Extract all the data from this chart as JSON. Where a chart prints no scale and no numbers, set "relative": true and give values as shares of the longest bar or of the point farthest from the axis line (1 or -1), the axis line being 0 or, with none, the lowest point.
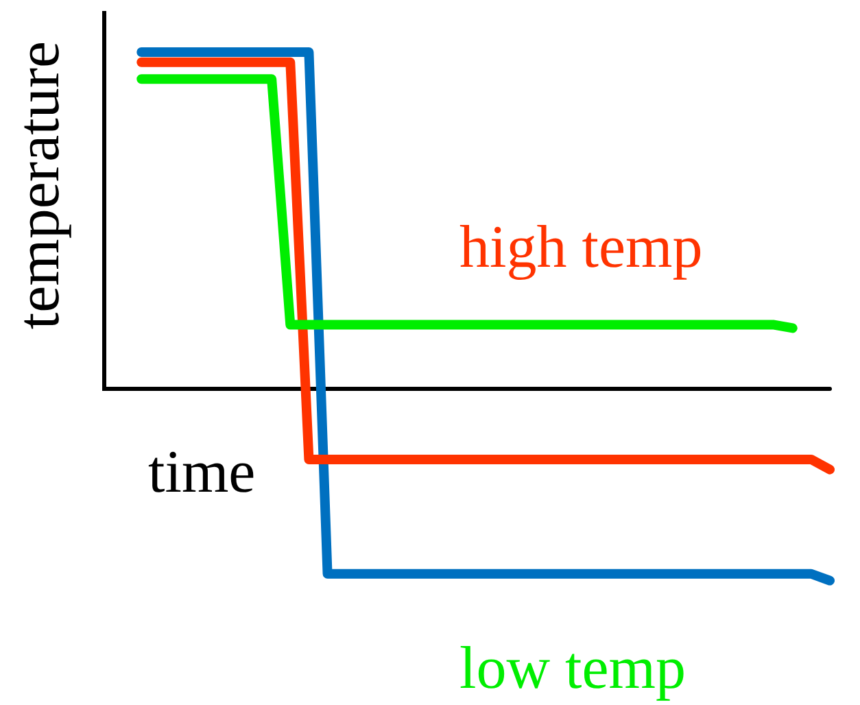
{
  "chart_data": {
    "type": "line",
    "relative": true,
    "xlabel": "time",
    "ylabel": "temperature",
    "categories": [
      null,
      null,
      null,
      null,
      null,
      null,
      null,
      null,
      null,
      null,
      null,
      null,
      null,
      null,
      null,
      null,
      null,
      null,
      null,
      null,
      null,
      null,
      null,
      null,
      null,
      null,
      null,
      null,
      null,
      null,
      null,
      null,
      null,
      null,
      null,
      null,
      null,
      null,
      null,
      null
    ],
    "series": [
      {
        "color": "#0070c0",
        "values": [
          null,
          null,
          1,
          1,
          1,
          1,
          1,
          1,
          1,
          1,
          1,
          1,
          -0.55,
          -0.55,
          -0.55,
          -0.55,
          -0.55,
          -0.55,
          -0.55,
          -0.55,
          -0.55,
          -0.55,
          -0.55,
          -0.55,
          -0.55,
          -0.55,
          -0.55,
          -0.55,
          -0.55,
          -0.55,
          -0.55,
          -0.55,
          -0.55,
          -0.55,
          -0.55,
          -0.55,
          -0.55,
          -0.55,
          -0.55,
          -0.57
        ]
      },
      {
        "name": "high temp",
        "color": "#ff3300",
        "values": [
          null,
          null,
          0.97,
          0.97,
          0.97,
          0.97,
          0.97,
          0.97,
          0.97,
          0.97,
          0.97,
          -0.21,
          -0.21,
          -0.21,
          -0.21,
          -0.21,
          -0.21,
          -0.21,
          -0.21,
          -0.21,
          -0.21,
          -0.21,
          -0.21,
          -0.21,
          -0.21,
          -0.21,
          -0.21,
          -0.21,
          -0.21,
          -0.21,
          -0.21,
          -0.21,
          -0.21,
          -0.21,
          -0.21,
          -0.21,
          -0.21,
          -0.21,
          -0.21,
          -0.24
        ]
      },
      {
        "name": "low temp",
        "color": "#00ee00",
        "values": [
          null,
          null,
          0.92,
          0.92,
          0.92,
          0.92,
          0.92,
          0.92,
          0.92,
          0.92,
          0.19,
          0.19,
          0.19,
          0.19,
          0.19,
          0.19,
          0.19,
          0.19,
          0.19,
          0.19,
          0.19,
          0.19,
          0.19,
          0.19,
          0.19,
          0.19,
          0.19,
          0.19,
          0.19,
          0.19,
          0.19,
          0.19,
          0.19,
          0.19,
          0.19,
          0.19,
          0.19,
          0.18,
          null,
          null
        ]
      }
    ],
    "legend": false,
    "grid": false
  }
}
